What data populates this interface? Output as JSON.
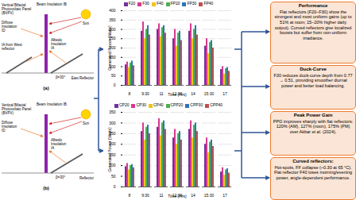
{
  "diagram": {
    "panels": [
      {
        "label": "(a)",
        "sun": "Sun",
        "beam": "Beam Insolation IB",
        "panel": "Vertical Bifacial Photovoltaic Panel (BVPV)",
        "diffuse": "Diffuse Insolation ID",
        "albedo": "Albedo Insolation IA",
        "west": "IA from West reflector",
        "angle": "β=30°",
        "reflector": "East Reflector"
      },
      {
        "label": "(b)",
        "sun": "Sun",
        "beam": "Beam Insolation IB",
        "panel": "Vertical Bifacial Photovoltaic Panel (BVPV)",
        "diffuse": "Diffuse Insolation ID",
        "albedo": "Albedo Insolation IA",
        "angle": "β=30°",
        "reflector": "Reflector"
      }
    ]
  },
  "chart_data": [
    {
      "type": "bar",
      "categories": [
        "8",
        "9:30",
        "11",
        "12:30",
        "14",
        "15:30",
        "17"
      ],
      "x_label": "Time (Hrs)",
      "y_label": "Generated Power (Watts)",
      "series": [
        {
          "name": "F20",
          "color": "#7030a0",
          "values": [
            110,
            290,
            300,
            250,
            290,
            210,
            85
          ]
        },
        {
          "name": "F30",
          "color": "#d63a8e",
          "values": [
            125,
            340,
            330,
            300,
            330,
            250,
            100
          ]
        },
        {
          "name": "F40",
          "color": "#f0c419",
          "values": [
            95,
            250,
            260,
            210,
            250,
            170,
            60
          ]
        },
        {
          "name": "FP20",
          "color": "#4caf50",
          "values": [
            120,
            300,
            310,
            280,
            300,
            230,
            90
          ]
        },
        {
          "name": "FP30",
          "color": "#2e75b6",
          "values": [
            130,
            320,
            320,
            290,
            320,
            240,
            95
          ]
        },
        {
          "name": "FP40",
          "color": "#c0504d",
          "values": [
            105,
            270,
            280,
            240,
            270,
            200,
            75
          ]
        }
      ],
      "ylim": [
        0,
        400
      ],
      "yticks": [
        0,
        50,
        100,
        150,
        200,
        250,
        300,
        350,
        400
      ],
      "grid": true,
      "legend": "top"
    },
    {
      "type": "bar",
      "categories": [
        "8",
        "9:30",
        "11",
        "12:30",
        "14",
        "15:30",
        "17"
      ],
      "x_label": "Time (Hrs)",
      "y_label": "Generated Power (Watts)",
      "series": [
        {
          "name": "CP20",
          "color": "#7030a0",
          "values": [
            95,
            260,
            280,
            230,
            270,
            200,
            70
          ]
        },
        {
          "name": "CP30",
          "color": "#d63a8e",
          "values": [
            110,
            300,
            320,
            270,
            310,
            230,
            90
          ]
        },
        {
          "name": "CP40",
          "color": "#f0c419",
          "values": [
            80,
            220,
            240,
            200,
            230,
            160,
            55
          ]
        },
        {
          "name": "CPP20",
          "color": "#4caf50",
          "values": [
            100,
            280,
            300,
            250,
            290,
            210,
            80
          ]
        },
        {
          "name": "CPP30",
          "color": "#2e75b6",
          "values": [
            105,
            290,
            310,
            260,
            300,
            220,
            85
          ]
        },
        {
          "name": "CPP40",
          "color": "#c0504d",
          "values": [
            90,
            250,
            270,
            220,
            260,
            190,
            65
          ]
        }
      ],
      "ylim": [
        0,
        350
      ],
      "yticks": [
        0,
        50,
        100,
        150,
        200,
        250,
        300,
        350
      ],
      "grid": true,
      "legend": "top"
    }
  ],
  "findings": [
    {
      "title": "Performance",
      "text": "Flat reflectors (F20–F30) show the strongest and most uniform gains (up to 51% at noon; 15–20% higher daily output). Curved reflectors give localized boosts but suffer from non-uniform irradiance."
    },
    {
      "title": "Duck-Curve",
      "text": "F30 reduces duck-curve depth from 0.77 → 0.51, providing smoother diurnal power and better load balancing."
    },
    {
      "title": "Peak Power Gain",
      "text": "PPG improves sharply with flat reflectors: 120% (AM), 127% (noon), 175% (PM) over Akbar et al. (2024)."
    },
    {
      "title": "Curved reflectors:",
      "text": "Hot-spots, FF collapse (~0.30 at 65 °C). Flat reflector F40 loses morning/evening power, angle-dependent performance."
    }
  ]
}
